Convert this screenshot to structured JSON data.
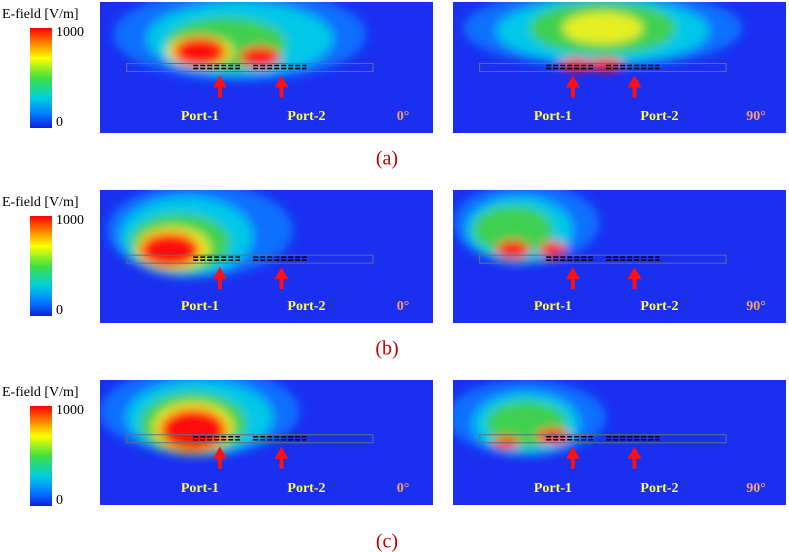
{
  "figure": {
    "rows": [
      {
        "caption": "(a)",
        "colorbar": {
          "title": "E-field [V/m]",
          "max": 1000,
          "min": 0
        },
        "panels": [
          {
            "port1": "Port-1",
            "port2": "Port-2",
            "angle": "0°"
          },
          {
            "port1": "Port-1",
            "port2": "Port-2",
            "angle": "90°"
          }
        ]
      },
      {
        "caption": "(b)",
        "colorbar": {
          "title": "E-field [V/m]",
          "max": 1000,
          "min": 0
        },
        "panels": [
          {
            "port1": "Port-1",
            "port2": "Port-2",
            "angle": "0°"
          },
          {
            "port1": "Port-1",
            "port2": "Port-2",
            "angle": "90°"
          }
        ]
      },
      {
        "caption": "(c)",
        "colorbar": {
          "title": "E-field [V/m]",
          "max": 1000,
          "min": 0
        },
        "panels": [
          {
            "port1": "Port-1",
            "port2": "Port-2",
            "angle": "0°"
          },
          {
            "port1": "Port-1",
            "port2": "Port-2",
            "angle": "90°"
          }
        ]
      }
    ]
  }
}
